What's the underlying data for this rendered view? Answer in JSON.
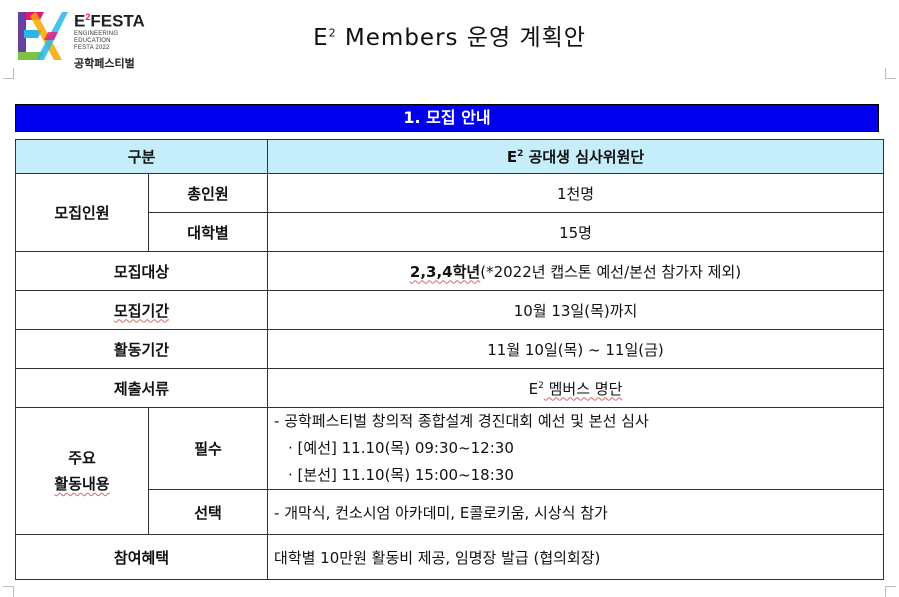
{
  "logo": {
    "brand": "E",
    "brand_sup": "2",
    "brand_rest": "FESTA",
    "line1": "ENGINEERING EDUCATION",
    "line2": "FESTA 2022",
    "korean": "공학페스티벌",
    "colors": [
      "#e5187a",
      "#f7a600",
      "#29b6e8",
      "#7cc242",
      "#6a3fa0"
    ]
  },
  "title": {
    "prefix": "E",
    "sup": "2",
    "rest": " Members 운영 계획안"
  },
  "section": {
    "label": "1. 모집 안내",
    "color": "#0000ee"
  },
  "table": {
    "header_left": "구분",
    "header_right_prefix": "E",
    "header_right_sup": "2",
    "header_right_rest": " 공대생 심사위원단",
    "recruit": {
      "label": "모집인원",
      "total_label": "총인원",
      "total_value": "1천명",
      "per_univ_label": "대학별",
      "per_univ_value": "15명"
    },
    "target": {
      "label": "모집대상",
      "value_bold": "2,3,4학년",
      "value_rest": "(*2022년 캡스톤 예선/본선 참가자 제외)"
    },
    "period": {
      "label": "모집기간",
      "value": "10월 13일(목)까지"
    },
    "activity_period": {
      "label": "활동기간",
      "value": "11월 10일(목) ~ 11일(금)"
    },
    "documents": {
      "label": "제출서류",
      "value_prefix": "E",
      "value_sup": "2",
      "value_rest": " 멤버스 명단"
    },
    "activities": {
      "label_line1": "주요",
      "label_line2": "활동내용",
      "required_label": "필수",
      "required_lines": [
        "- 공학페스티벌 창의적 종합설계 경진대회 예선 및 본선 심사",
        "· [예선] 11.10(목) 09:30~12:30",
        "· [본선] 11.10(목) 15:00~18:30"
      ],
      "optional_label": "선택",
      "optional_value": "- 개막식, 컨소시엄 아카데미, E콜로키움, 시상식 참가"
    },
    "benefits": {
      "label": "참여혜택",
      "value": "대학별 10만원 활동비 제공, 임명장 발급 (협의회장)"
    },
    "header_bg": "#c5eefa"
  }
}
